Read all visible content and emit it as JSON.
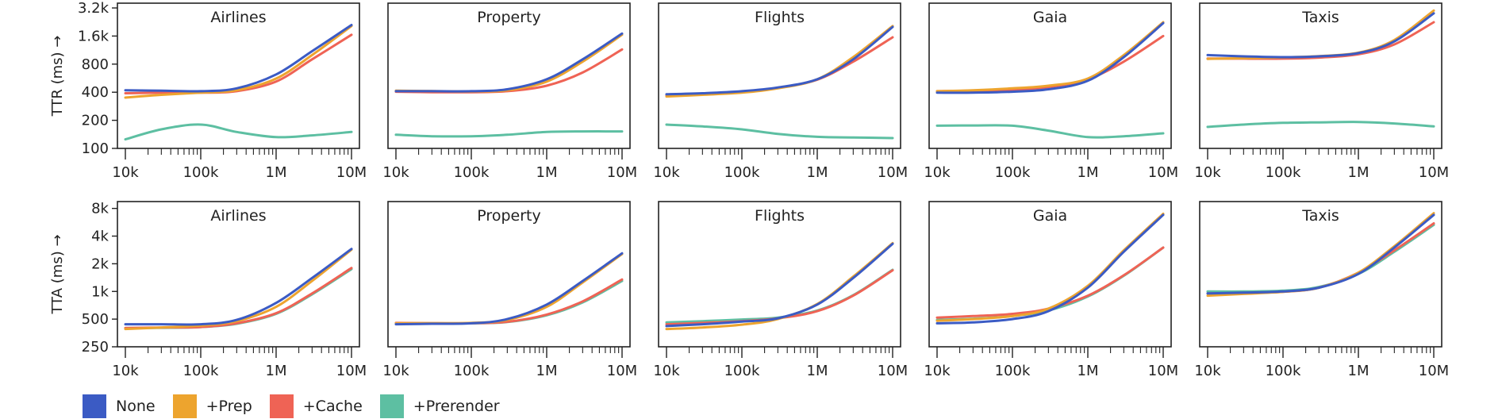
{
  "chart_data": {
    "type": "line",
    "x_scale": "log",
    "y_scale": "log",
    "x_ticks": [
      10000,
      100000,
      1000000,
      10000000
    ],
    "x_tick_labels": [
      "10k",
      "100k",
      "1M",
      "10M"
    ],
    "colors": {
      "None": "#3b5bc4",
      "+Prep": "#eda42e",
      "+Cache": "#ef6355",
      "+Prerender": "#5dbfa2"
    },
    "legend": {
      "position": "bottom-left",
      "entries": [
        "None",
        "+Prep",
        "+Cache",
        "+Prerender"
      ]
    },
    "rows": [
      {
        "ylabel": "TTR (ms) →",
        "ylim": [
          100,
          3600
        ],
        "y_ticks": [
          100,
          200,
          400,
          800,
          1600,
          3200
        ],
        "y_tick_labels": [
          "100",
          "200",
          "400",
          "800",
          "1.6k",
          "3.2k"
        ],
        "panels": [
          {
            "title": "Airlines",
            "x": [
              10000,
              30000,
              100000,
              300000,
              1000000,
              3000000,
              10000000
            ],
            "series": [
              {
                "name": "None",
                "y": [
                  420,
                  415,
                  410,
                  440,
                  620,
                  1100,
                  2100
                ]
              },
              {
                "name": "+Prep",
                "y": [
                  350,
                  375,
                  395,
                  420,
                  560,
                  1000,
                  2050
                ]
              },
              {
                "name": "+Cache",
                "y": [
                  390,
                  395,
                  395,
                  410,
                  520,
                  900,
                  1650
                ]
              },
              {
                "name": "+Prerender",
                "y": [
                  125,
                  160,
                  180,
                  150,
                  132,
                  138,
                  150
                ]
              }
            ]
          },
          {
            "title": "Property",
            "x": [
              10000,
              30000,
              100000,
              300000,
              1000000,
              3000000,
              10000000
            ],
            "series": [
              {
                "name": "None",
                "y": [
                  410,
                  410,
                  410,
                  430,
                  550,
                  900,
                  1700
                ]
              },
              {
                "name": "+Prep",
                "y": [
                  415,
                  412,
                  408,
                  420,
                  520,
                  850,
                  1650
                ]
              },
              {
                "name": "+Cache",
                "y": [
                  405,
                  400,
                  400,
                  410,
                  470,
                  650,
                  1150
                ]
              },
              {
                "name": "+Prerender",
                "y": [
                  140,
                  135,
                  135,
                  140,
                  150,
                  152,
                  152
                ]
              }
            ]
          },
          {
            "title": "Flights",
            "x": [
              10000,
              30000,
              100000,
              300000,
              1000000,
              3000000,
              10000000
            ],
            "series": [
              {
                "name": "None",
                "y": [
                  380,
                  390,
                  410,
                  450,
                  550,
                  900,
                  2000
                ]
              },
              {
                "name": "+Prep",
                "y": [
                  360,
                  375,
                  395,
                  440,
                  550,
                  950,
                  2050
                ]
              },
              {
                "name": "+Cache",
                "y": [
                  370,
                  382,
                  402,
                  445,
                  545,
                  850,
                  1550
                ]
              },
              {
                "name": "+Prerender",
                "y": [
                  180,
                  172,
                  160,
                  143,
                  133,
                  131,
                  129
                ]
              }
            ]
          },
          {
            "title": "Gaia",
            "x": [
              10000,
              30000,
              100000,
              300000,
              1000000,
              3000000,
              10000000
            ],
            "series": [
              {
                "name": "None",
                "y": [
                  395,
                  395,
                  405,
                  430,
                  530,
                  950,
                  2200
                ]
              },
              {
                "name": "+Prep",
                "y": [
                  410,
                  420,
                  440,
                  470,
                  560,
                  1000,
                  2250
                ]
              },
              {
                "name": "+Cache",
                "y": [
                  410,
                  415,
                  425,
                  455,
                  550,
                  850,
                  1600
                ]
              },
              {
                "name": "+Prerender",
                "y": [
                  175,
                  176,
                  175,
                  155,
                  132,
                  135,
                  145
                ]
              }
            ]
          },
          {
            "title": "Taxis",
            "x": [
              10000,
              30000,
              100000,
              300000,
              1000000,
              3000000,
              10000000
            ],
            "series": [
              {
                "name": "None",
                "y": [
                  1000,
                  970,
                  950,
                  970,
                  1050,
                  1400,
                  2800
                ]
              },
              {
                "name": "+Prep",
                "y": [
                  910,
                  925,
                  945,
                  975,
                  1060,
                  1450,
                  3000
                ]
              },
              {
                "name": "+Cache",
                "y": [
                  920,
                  915,
                  915,
                  940,
                  1020,
                  1300,
                  2250
                ]
              },
              {
                "name": "+Prerender",
                "y": [
                  170,
                  180,
                  188,
                  190,
                  192,
                  185,
                  172
                ]
              }
            ]
          }
        ]
      },
      {
        "ylabel": "TTA (ms) →",
        "ylim": [
          250,
          9500
        ],
        "y_ticks": [
          250,
          500,
          1000,
          2000,
          4000,
          8000
        ],
        "y_tick_labels": [
          "250",
          "500",
          "1k",
          "2k",
          "4k",
          "8k"
        ],
        "panels": [
          {
            "title": "Airlines",
            "x": [
              10000,
              30000,
              100000,
              300000,
              1000000,
              3000000,
              10000000
            ],
            "series": [
              {
                "name": "None",
                "y": [
                  440,
                  440,
                  440,
                  490,
                  750,
                  1400,
                  2900
                ]
              },
              {
                "name": "+Prep",
                "y": [
                  390,
                  405,
                  425,
                  475,
                  680,
                  1300,
                  2850
                ]
              },
              {
                "name": "+Cache",
                "y": [
                  400,
                  405,
                  410,
                  450,
                  580,
                  950,
                  1800
                ]
              },
              {
                "name": "+Prerender",
                "y": [
                  400,
                  402,
                  410,
                  445,
                  570,
                  930,
                  1750
                ]
              }
            ]
          },
          {
            "title": "Property",
            "x": [
              10000,
              30000,
              100000,
              300000,
              1000000,
              3000000,
              10000000
            ],
            "series": [
              {
                "name": "None",
                "y": [
                  440,
                  445,
                  450,
                  500,
                  720,
                  1300,
                  2600
                ]
              },
              {
                "name": "+Prep",
                "y": [
                  450,
                  452,
                  455,
                  490,
                  680,
                  1250,
                  2550
                ]
              },
              {
                "name": "+Cache",
                "y": [
                  455,
                  452,
                  452,
                  468,
                  560,
                  780,
                  1350
                ]
              },
              {
                "name": "+Prerender",
                "y": [
                  445,
                  447,
                  450,
                  465,
                  550,
                  760,
                  1300
                ]
              }
            ]
          },
          {
            "title": "Flights",
            "x": [
              10000,
              30000,
              100000,
              300000,
              1000000,
              3000000,
              10000000
            ],
            "series": [
              {
                "name": "None",
                "y": [
                  420,
                  440,
                  470,
                  510,
                  720,
                  1400,
                  3300
                ]
              },
              {
                "name": "+Prep",
                "y": [
                  390,
                  405,
                  435,
                  500,
                  730,
                  1450,
                  3350
                ]
              },
              {
                "name": "+Cache",
                "y": [
                  440,
                  455,
                  475,
                  510,
                  610,
                  900,
                  1700
                ]
              },
              {
                "name": "+Prerender",
                "y": [
                  460,
                  475,
                  495,
                  520,
                  620,
                  910,
                  1720
                ]
              }
            ]
          },
          {
            "title": "Gaia",
            "x": [
              10000,
              30000,
              100000,
              300000,
              1000000,
              3000000,
              10000000
            ],
            "series": [
              {
                "name": "None",
                "y": [
                  450,
                  460,
                  500,
                  610,
                  1100,
                  2700,
                  6800
                ]
              },
              {
                "name": "+Prep",
                "y": [
                  480,
                  500,
                  540,
                  650,
                  1150,
                  2800,
                  7000
                ]
              },
              {
                "name": "+Cache",
                "y": [
                  520,
                  540,
                  570,
                  650,
                  900,
                  1500,
                  3000
                ]
              },
              {
                "name": "+Prerender",
                "y": [
                  490,
                  505,
                  540,
                  620,
                  880,
                  1480,
                  3000
                ]
              }
            ]
          },
          {
            "title": "Taxis",
            "x": [
              10000,
              30000,
              100000,
              300000,
              1000000,
              3000000,
              10000000
            ],
            "series": [
              {
                "name": "None",
                "y": [
                  950,
                  970,
                  1000,
                  1100,
                  1550,
                  3000,
                  6800
                ]
              },
              {
                "name": "+Prep",
                "y": [
                  900,
                  940,
                  990,
                  1100,
                  1600,
                  3100,
                  7100
                ]
              },
              {
                "name": "+Cache",
                "y": [
                  950,
                  960,
                  990,
                  1100,
                  1600,
                  2800,
                  5500
                ]
              },
              {
                "name": "+Prerender",
                "y": [
                  1000,
                  1000,
                  1020,
                  1120,
                  1550,
                  2700,
                  5300
                ]
              }
            ]
          }
        ]
      }
    ]
  }
}
